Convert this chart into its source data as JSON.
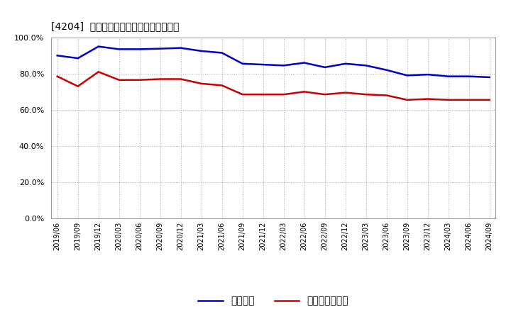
{
  "title": "[4204]  固定比率、固定長期適合率の推移",
  "x_labels": [
    "2019/06",
    "2019/09",
    "2019/12",
    "2020/03",
    "2020/06",
    "2020/09",
    "2020/12",
    "2021/03",
    "2021/06",
    "2021/09",
    "2021/12",
    "2022/03",
    "2022/06",
    "2022/09",
    "2022/12",
    "2023/03",
    "2023/06",
    "2023/09",
    "2023/12",
    "2024/03",
    "2024/06",
    "2024/09"
  ],
  "fixed_ratio": [
    90.0,
    88.5,
    95.0,
    93.5,
    93.5,
    93.8,
    94.2,
    92.5,
    91.5,
    85.5,
    85.0,
    84.5,
    86.0,
    83.5,
    85.5,
    84.5,
    82.0,
    79.0,
    79.5,
    78.5,
    78.5,
    78.0
  ],
  "fixed_long_ratio": [
    78.5,
    73.0,
    81.0,
    76.5,
    76.5,
    77.0,
    77.0,
    74.5,
    73.5,
    68.5,
    68.5,
    68.5,
    70.0,
    68.5,
    69.5,
    68.5,
    68.0,
    65.5,
    66.0,
    65.5,
    65.5,
    65.5
  ],
  "fixed_ratio_color": "#0000cc",
  "fixed_long_ratio_color": "#cc0000",
  "background_color": "#ffffff",
  "plot_bg_color": "#ffffff",
  "grid_color": "#aaaaaa",
  "ylim": [
    0,
    100
  ],
  "yticks": [
    0,
    20,
    40,
    60,
    80,
    100
  ],
  "legend_labels": [
    "固定比率",
    "固定長期適合率"
  ]
}
